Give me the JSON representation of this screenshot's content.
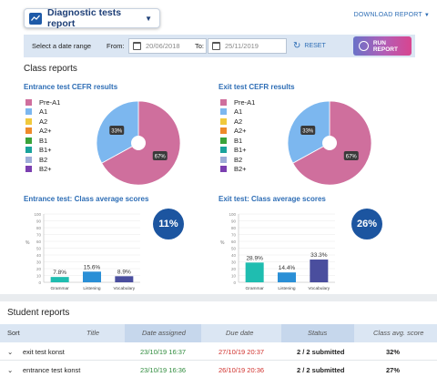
{
  "header": {
    "report_select_label": "Diagnostic tests report",
    "download_label": "DOWNLOAD REPORT"
  },
  "datebar": {
    "range_label": "Select a date range",
    "from_label": "From:",
    "from_value": "20/06/2018",
    "to_label": "To:",
    "to_value": "25/11/2019",
    "reset_label": "RESET",
    "run_label": "RUN REPORT"
  },
  "class_reports": {
    "title": "Class reports",
    "legend": [
      {
        "label": "Pre-A1",
        "color": "#cf6f9d"
      },
      {
        "label": "A1",
        "color": "#7cb7ef"
      },
      {
        "label": "A2",
        "color": "#f0c93c"
      },
      {
        "label": "A2+",
        "color": "#ee8a2a"
      },
      {
        "label": "B1",
        "color": "#3aa33a"
      },
      {
        "label": "B1+",
        "color": "#1aa39c"
      },
      {
        "label": "B2",
        "color": "#9eadd8"
      },
      {
        "label": "B2+",
        "color": "#7b3fb0"
      }
    ],
    "entrance_cefr_title": "Entrance test CEFR results",
    "exit_cefr_title": "Exit test CEFR results",
    "entrance_avg_title": "Entrance test: Class average scores",
    "exit_avg_title": "Exit test: Class average scores",
    "entrance_avg_value": "11%",
    "exit_avg_value": "26%"
  },
  "chart_data": [
    {
      "type": "pie",
      "title": "Entrance test CEFR results",
      "categories": [
        "Pre-A1",
        "A1"
      ],
      "values": [
        67,
        33
      ],
      "labels": [
        "67%",
        "33%"
      ],
      "colors": [
        "#cf6f9d",
        "#7cb7ef"
      ]
    },
    {
      "type": "pie",
      "title": "Exit test CEFR results",
      "categories": [
        "Pre-A1",
        "A1"
      ],
      "values": [
        67,
        33
      ],
      "labels": [
        "67%",
        "33%"
      ],
      "colors": [
        "#cf6f9d",
        "#7cb7ef"
      ]
    },
    {
      "type": "bar",
      "title": "Entrance test: Class average scores",
      "categories": [
        "Grammar",
        "Listening",
        "Vocabulary"
      ],
      "values": [
        7.8,
        15.6,
        8.9
      ],
      "labels": [
        "7.8%",
        "15.6%",
        "8.9%"
      ],
      "colors": [
        "#1fbdb0",
        "#2a8fd6",
        "#4a4e9e"
      ],
      "ylabel": "%",
      "ylim": [
        0,
        100
      ],
      "yticks": [
        "0",
        "10",
        "20",
        "30",
        "40",
        "50",
        "60",
        "70",
        "80",
        "90",
        "100"
      ]
    },
    {
      "type": "bar",
      "title": "Exit test: Class average scores",
      "categories": [
        "Grammar",
        "Listening",
        "Vocabulary"
      ],
      "values": [
        28.9,
        14.4,
        33.3
      ],
      "labels": [
        "28.9%",
        "14.4%",
        "33.3%"
      ],
      "colors": [
        "#1fbdb0",
        "#2a8fd6",
        "#4a4e9e"
      ],
      "ylabel": "%",
      "ylim": [
        0,
        100
      ],
      "yticks": [
        "0",
        "10",
        "20",
        "30",
        "40",
        "50",
        "60",
        "70",
        "80",
        "90",
        "100"
      ]
    }
  ],
  "student_reports": {
    "title": "Student reports",
    "columns": {
      "sort": "Sort",
      "title": "Title",
      "date_assigned": "Date assigned",
      "due_date": "Due date",
      "status": "Status",
      "score": "Class avg. score"
    },
    "rows": [
      {
        "title": "exit test konst",
        "assigned": "23/10/19 16:37",
        "due": "27/10/19 20:37",
        "status": "2 / 2 submitted",
        "score": "32%"
      },
      {
        "title": "entrance test konst",
        "assigned": "23/10/19 16:36",
        "due": "26/10/19 20:36",
        "status": "2 / 2 submitted",
        "score": "27%"
      }
    ]
  }
}
